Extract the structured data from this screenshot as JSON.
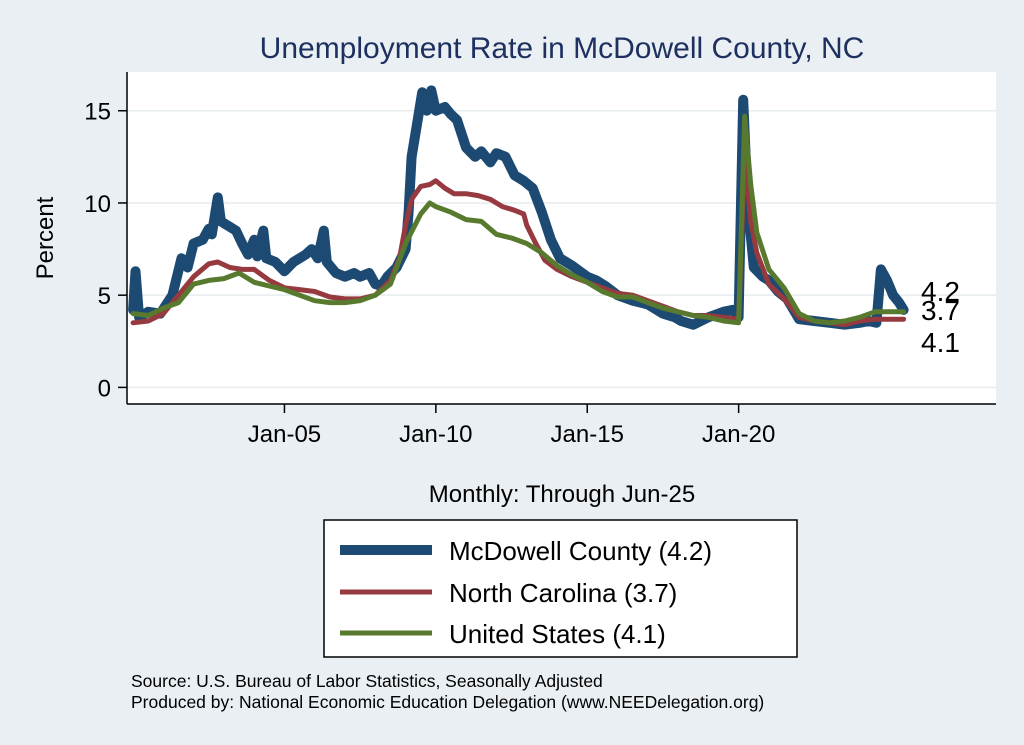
{
  "chart_data": {
    "type": "line",
    "title": "Unemployment Rate in McDowell  County, NC",
    "xlabel": "Monthly: Through Jun-25",
    "ylabel": "Percent",
    "xlim": [
      1999.8,
      2028.5
    ],
    "ylim": [
      -0.9,
      17.1
    ],
    "yticks": [
      0,
      5,
      10,
      15
    ],
    "ytick_labels": [
      "0",
      "5",
      "10",
      "15"
    ],
    "xticks": [
      2005,
      2010,
      2015,
      2020
    ],
    "xtick_labels": [
      "Jan-05",
      "Jan-10",
      "Jan-15",
      "Jan-20"
    ],
    "legend_position": "bottom",
    "series": [
      {
        "name": "McDowell  County",
        "legend_label": "McDowell  County (4.2)",
        "color": "#1c4a72",
        "end_label": "4.2",
        "points": [
          [
            2000.0,
            4.2
          ],
          [
            2000.08,
            6.3
          ],
          [
            2000.2,
            3.8
          ],
          [
            2000.5,
            4.1
          ],
          [
            2000.9,
            4.0
          ],
          [
            2001.3,
            5.0
          ],
          [
            2001.6,
            7.0
          ],
          [
            2001.8,
            6.5
          ],
          [
            2002.0,
            7.8
          ],
          [
            2002.3,
            8.0
          ],
          [
            2002.5,
            8.6
          ],
          [
            2002.6,
            8.3
          ],
          [
            2002.8,
            10.3
          ],
          [
            2002.9,
            9.0
          ],
          [
            2003.2,
            8.7
          ],
          [
            2003.4,
            8.5
          ],
          [
            2003.6,
            7.8
          ],
          [
            2003.8,
            7.2
          ],
          [
            2004.0,
            8.0
          ],
          [
            2004.1,
            7.1
          ],
          [
            2004.3,
            8.5
          ],
          [
            2004.4,
            7.0
          ],
          [
            2004.7,
            6.8
          ],
          [
            2005.0,
            6.3
          ],
          [
            2005.3,
            6.8
          ],
          [
            2005.7,
            7.2
          ],
          [
            2005.9,
            7.5
          ],
          [
            2006.1,
            7.0
          ],
          [
            2006.3,
            8.5
          ],
          [
            2006.4,
            6.8
          ],
          [
            2006.7,
            6.2
          ],
          [
            2007.0,
            6.0
          ],
          [
            2007.3,
            6.2
          ],
          [
            2007.5,
            6.0
          ],
          [
            2007.8,
            6.2
          ],
          [
            2008.0,
            5.6
          ],
          [
            2008.2,
            5.5
          ],
          [
            2008.4,
            6.0
          ],
          [
            2008.7,
            6.5
          ],
          [
            2009.0,
            7.5
          ],
          [
            2009.1,
            9.5
          ],
          [
            2009.2,
            12.5
          ],
          [
            2009.4,
            14.5
          ],
          [
            2009.55,
            16.0
          ],
          [
            2009.7,
            15.0
          ],
          [
            2009.85,
            16.1
          ],
          [
            2010.0,
            15.0
          ],
          [
            2010.3,
            15.2
          ],
          [
            2010.5,
            14.8
          ],
          [
            2010.7,
            14.5
          ],
          [
            2011.0,
            13.0
          ],
          [
            2011.3,
            12.5
          ],
          [
            2011.5,
            12.8
          ],
          [
            2011.8,
            12.2
          ],
          [
            2012.0,
            12.7
          ],
          [
            2012.3,
            12.5
          ],
          [
            2012.6,
            11.5
          ],
          [
            2012.9,
            11.2
          ],
          [
            2013.2,
            10.8
          ],
          [
            2013.5,
            9.5
          ],
          [
            2013.8,
            8.0
          ],
          [
            2014.1,
            7.0
          ],
          [
            2014.5,
            6.6
          ],
          [
            2015.0,
            6.0
          ],
          [
            2015.3,
            5.8
          ],
          [
            2015.6,
            5.5
          ],
          [
            2016.0,
            5.0
          ],
          [
            2016.5,
            4.7
          ],
          [
            2017.0,
            4.5
          ],
          [
            2017.5,
            4.0
          ],
          [
            2017.9,
            3.8
          ],
          [
            2018.1,
            3.6
          ],
          [
            2018.5,
            3.4
          ],
          [
            2019.0,
            3.8
          ],
          [
            2019.5,
            4.1
          ],
          [
            2019.8,
            4.2
          ],
          [
            2020.0,
            3.8
          ],
          [
            2020.15,
            15.6
          ],
          [
            2020.3,
            10.0
          ],
          [
            2020.5,
            6.5
          ],
          [
            2020.8,
            6.0
          ],
          [
            2021.0,
            5.8
          ],
          [
            2021.3,
            5.2
          ],
          [
            2021.6,
            4.8
          ],
          [
            2022.0,
            3.7
          ],
          [
            2022.5,
            3.6
          ],
          [
            2023.0,
            3.5
          ],
          [
            2023.5,
            3.4
          ],
          [
            2024.0,
            3.5
          ],
          [
            2024.3,
            3.6
          ],
          [
            2024.55,
            3.5
          ],
          [
            2024.7,
            6.4
          ],
          [
            2024.9,
            5.8
          ],
          [
            2025.1,
            5.0
          ],
          [
            2025.3,
            4.6
          ],
          [
            2025.45,
            4.2
          ]
        ]
      },
      {
        "name": "North Carolina",
        "legend_label": "North Carolina (3.7)",
        "color": "#963a40",
        "end_label": "3.7",
        "points": [
          [
            2000.0,
            3.5
          ],
          [
            2000.5,
            3.6
          ],
          [
            2001.0,
            4.0
          ],
          [
            2001.5,
            5.0
          ],
          [
            2002.0,
            6.0
          ],
          [
            2002.5,
            6.7
          ],
          [
            2002.8,
            6.8
          ],
          [
            2003.2,
            6.5
          ],
          [
            2003.6,
            6.4
          ],
          [
            2004.0,
            6.4
          ],
          [
            2004.5,
            5.8
          ],
          [
            2005.0,
            5.4
          ],
          [
            2005.5,
            5.3
          ],
          [
            2006.0,
            5.2
          ],
          [
            2006.5,
            4.9
          ],
          [
            2007.0,
            4.8
          ],
          [
            2007.5,
            4.8
          ],
          [
            2008.0,
            5.0
          ],
          [
            2008.5,
            5.8
          ],
          [
            2008.8,
            7.0
          ],
          [
            2009.0,
            8.8
          ],
          [
            2009.2,
            10.2
          ],
          [
            2009.5,
            10.9
          ],
          [
            2009.8,
            11.0
          ],
          [
            2010.0,
            11.2
          ],
          [
            2010.3,
            10.8
          ],
          [
            2010.6,
            10.5
          ],
          [
            2011.0,
            10.5
          ],
          [
            2011.4,
            10.4
          ],
          [
            2011.8,
            10.2
          ],
          [
            2012.2,
            9.8
          ],
          [
            2012.6,
            9.6
          ],
          [
            2012.9,
            9.4
          ],
          [
            2013.0,
            8.8
          ],
          [
            2013.3,
            7.8
          ],
          [
            2013.6,
            6.9
          ],
          [
            2014.0,
            6.4
          ],
          [
            2014.5,
            6.0
          ],
          [
            2015.0,
            5.7
          ],
          [
            2015.5,
            5.4
          ],
          [
            2016.0,
            5.1
          ],
          [
            2016.5,
            5.0
          ],
          [
            2017.0,
            4.7
          ],
          [
            2017.5,
            4.4
          ],
          [
            2018.0,
            4.1
          ],
          [
            2018.5,
            3.9
          ],
          [
            2019.0,
            3.9
          ],
          [
            2019.5,
            3.8
          ],
          [
            2020.0,
            3.7
          ],
          [
            2020.2,
            12.6
          ],
          [
            2020.4,
            9.0
          ],
          [
            2020.6,
            7.3
          ],
          [
            2021.0,
            5.6
          ],
          [
            2021.5,
            4.8
          ],
          [
            2022.0,
            3.8
          ],
          [
            2022.5,
            3.6
          ],
          [
            2023.0,
            3.5
          ],
          [
            2023.5,
            3.4
          ],
          [
            2024.0,
            3.6
          ],
          [
            2024.5,
            3.7
          ],
          [
            2025.0,
            3.7
          ],
          [
            2025.45,
            3.7
          ]
        ]
      },
      {
        "name": "United States",
        "legend_label": "United States (4.1)",
        "color": "#587a2e",
        "end_label": "4.1",
        "points": [
          [
            2000.0,
            4.0
          ],
          [
            2000.5,
            3.9
          ],
          [
            2001.0,
            4.3
          ],
          [
            2001.5,
            4.6
          ],
          [
            2002.0,
            5.6
          ],
          [
            2002.5,
            5.8
          ],
          [
            2003.0,
            5.9
          ],
          [
            2003.5,
            6.2
          ],
          [
            2004.0,
            5.7
          ],
          [
            2004.5,
            5.5
          ],
          [
            2005.0,
            5.3
          ],
          [
            2005.5,
            5.0
          ],
          [
            2006.0,
            4.7
          ],
          [
            2006.5,
            4.6
          ],
          [
            2007.0,
            4.6
          ],
          [
            2007.5,
            4.7
          ],
          [
            2008.0,
            5.0
          ],
          [
            2008.5,
            5.6
          ],
          [
            2009.0,
            7.8
          ],
          [
            2009.5,
            9.4
          ],
          [
            2009.8,
            10.0
          ],
          [
            2010.0,
            9.8
          ],
          [
            2010.5,
            9.5
          ],
          [
            2011.0,
            9.1
          ],
          [
            2011.5,
            9.0
          ],
          [
            2012.0,
            8.3
          ],
          [
            2012.5,
            8.1
          ],
          [
            2013.0,
            7.8
          ],
          [
            2013.5,
            7.3
          ],
          [
            2014.0,
            6.6
          ],
          [
            2014.5,
            6.1
          ],
          [
            2015.0,
            5.7
          ],
          [
            2015.5,
            5.2
          ],
          [
            2016.0,
            4.9
          ],
          [
            2016.5,
            4.9
          ],
          [
            2017.0,
            4.6
          ],
          [
            2017.5,
            4.3
          ],
          [
            2018.0,
            4.1
          ],
          [
            2018.5,
            3.9
          ],
          [
            2019.0,
            3.8
          ],
          [
            2019.5,
            3.6
          ],
          [
            2020.0,
            3.5
          ],
          [
            2020.2,
            14.7
          ],
          [
            2020.4,
            11.0
          ],
          [
            2020.6,
            8.4
          ],
          [
            2021.0,
            6.4
          ],
          [
            2021.5,
            5.4
          ],
          [
            2022.0,
            4.0
          ],
          [
            2022.5,
            3.6
          ],
          [
            2023.0,
            3.5
          ],
          [
            2023.5,
            3.6
          ],
          [
            2024.0,
            3.8
          ],
          [
            2024.5,
            4.1
          ],
          [
            2025.0,
            4.1
          ],
          [
            2025.45,
            4.1
          ]
        ]
      }
    ]
  },
  "footer": {
    "source_line": "Source: U.S. Bureau of Labor Statistics, Seasonally Adjusted",
    "produced_line": "Produced by: National Economic Education Delegation (www.NEEDelegation.org)"
  }
}
